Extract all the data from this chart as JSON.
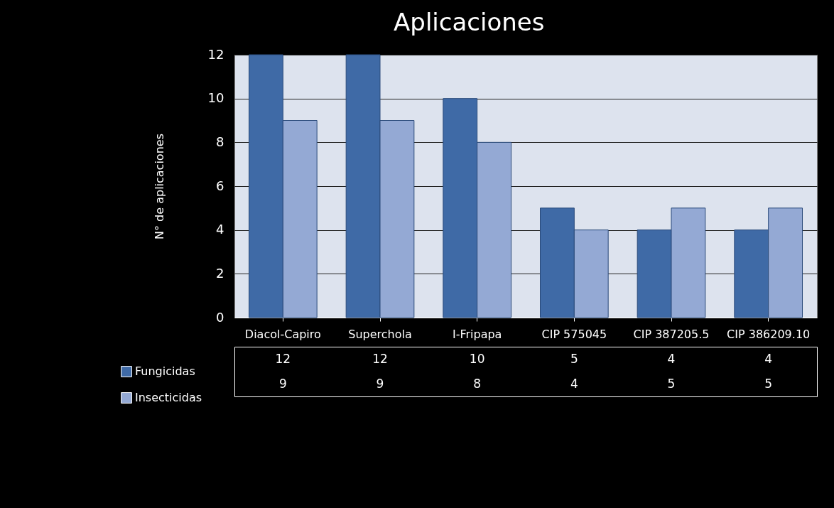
{
  "chart_data": {
    "type": "bar",
    "title": "Aplicaciones",
    "ylabel": "N° de aplicaciones",
    "categories": [
      "Diacol-Capiro",
      "Superchola",
      "I-Fripapa",
      "CIP 575045",
      "CIP 387205.5",
      "CIP 386209.10"
    ],
    "series": [
      {
        "name": "Fungicidas",
        "color": "#3f6aa6",
        "values": [
          12,
          12,
          10,
          5,
          4,
          4
        ]
      },
      {
        "name": "Insecticidas",
        "color": "#94a9d4",
        "values": [
          9,
          9,
          8,
          4,
          5,
          5
        ]
      }
    ],
    "ylim": [
      0,
      12
    ],
    "yticks": [
      0,
      2,
      4,
      6,
      8,
      10,
      12
    ],
    "grid": "y",
    "legend": "bottom left",
    "data_labels": true
  }
}
